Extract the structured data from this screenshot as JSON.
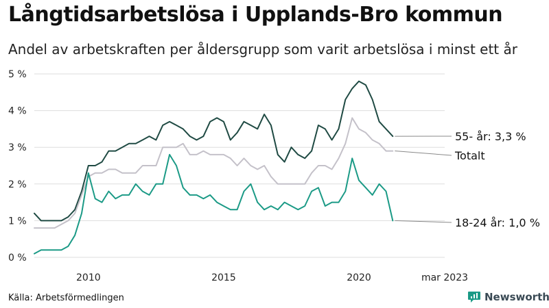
{
  "header": {
    "title": "Långtidsarbetslösa i Upplands-Bro kommun",
    "subtitle": "Andel av arbetskraften per åldersgrupp som varit arbetslösa i minst ett år"
  },
  "footer": {
    "source": "Källa: Arbetsförmedlingen",
    "brand": "Newsworthy"
  },
  "colors": {
    "older": "#1f4a43",
    "total": "#c4c1c9",
    "young": "#1b9a86",
    "grid": "#dddddd",
    "connector": "#888888",
    "brand": "#1b9a86"
  },
  "chart_data": {
    "type": "line",
    "title": "Långtidsarbetslösa i Upplands-Bro kommun",
    "subtitle": "Andel av arbetskraften per åldersgrupp som varit arbetslösa i minst ett år",
    "xlabel": "",
    "ylabel": "",
    "x_start": 2008.0,
    "x_step": 0.25,
    "xlim": [
      2008.0,
      2023.17
    ],
    "ylim": [
      0,
      5
    ],
    "grid": true,
    "y_ticks": [
      0,
      1,
      2,
      3,
      4,
      5
    ],
    "y_tick_labels": [
      "0 %",
      "1 %",
      "2 %",
      "3 %",
      "4 %",
      "5 %"
    ],
    "x_ticks": [
      2010,
      2015,
      2020,
      2023.17
    ],
    "x_tick_labels": [
      "2010",
      "2015",
      "2020",
      "mar 2023"
    ],
    "series": [
      {
        "name": "55- år",
        "key": "older",
        "end_label": "55- år: 3,3 %",
        "values": [
          1.2,
          1.0,
          1.0,
          1.0,
          1.0,
          1.1,
          1.3,
          1.8,
          2.5,
          2.5,
          2.6,
          2.9,
          2.9,
          3.0,
          3.1,
          3.1,
          3.2,
          3.3,
          3.2,
          3.6,
          3.7,
          3.6,
          3.5,
          3.3,
          3.2,
          3.3,
          3.7,
          3.8,
          3.7,
          3.2,
          3.4,
          3.7,
          3.6,
          3.5,
          3.9,
          3.6,
          2.8,
          2.6,
          3.0,
          2.8,
          2.7,
          2.9,
          3.6,
          3.5,
          3.2,
          3.5,
          4.3,
          4.6,
          4.8,
          4.7,
          4.3,
          3.7,
          3.5,
          3.3
        ]
      },
      {
        "name": "Totalt",
        "key": "total",
        "end_label": "Totalt",
        "values": [
          0.8,
          0.8,
          0.8,
          0.8,
          0.9,
          1.0,
          1.2,
          1.7,
          2.2,
          2.3,
          2.3,
          2.4,
          2.4,
          2.3,
          2.3,
          2.3,
          2.5,
          2.5,
          2.5,
          3.0,
          3.0,
          3.0,
          3.1,
          2.8,
          2.8,
          2.9,
          2.8,
          2.8,
          2.8,
          2.7,
          2.5,
          2.7,
          2.5,
          2.4,
          2.5,
          2.2,
          2.0,
          2.0,
          2.0,
          2.0,
          2.0,
          2.3,
          2.5,
          2.5,
          2.4,
          2.7,
          3.1,
          3.8,
          3.5,
          3.4,
          3.2,
          3.1,
          2.9,
          2.9
        ]
      },
      {
        "name": "18-24 år",
        "key": "young",
        "end_label": "18-24 år: 1,0 %",
        "values": [
          0.1,
          0.2,
          0.2,
          0.2,
          0.2,
          0.3,
          0.6,
          1.2,
          2.3,
          1.6,
          1.5,
          1.8,
          1.6,
          1.7,
          1.7,
          2.0,
          1.8,
          1.7,
          2.0,
          2.0,
          2.8,
          2.5,
          1.9,
          1.7,
          1.7,
          1.6,
          1.7,
          1.5,
          1.4,
          1.3,
          1.3,
          1.8,
          2.0,
          1.5,
          1.3,
          1.4,
          1.3,
          1.5,
          1.4,
          1.3,
          1.4,
          1.8,
          1.9,
          1.4,
          1.5,
          1.5,
          1.8,
          2.7,
          2.1,
          1.9,
          1.7,
          2.0,
          1.8,
          1.0
        ]
      }
    ]
  }
}
